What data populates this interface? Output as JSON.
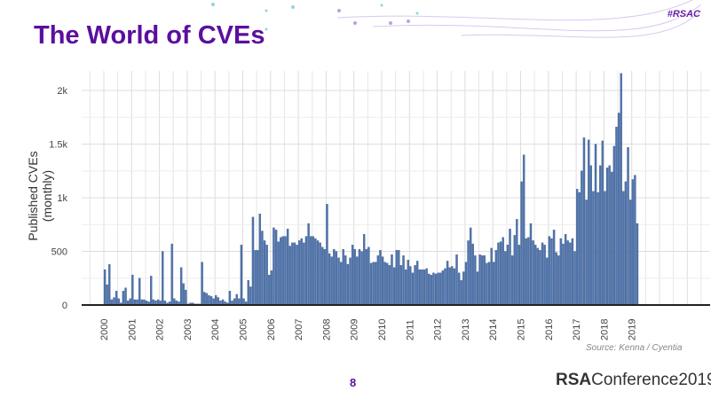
{
  "slide": {
    "title": "The World of CVEs",
    "hashtag": "#RSAC",
    "page_number": "8",
    "brand_bold": "RSA",
    "brand_rest": "Conference2019",
    "source": "Source: Kenna / Cyentia"
  },
  "chart_data": {
    "type": "bar",
    "title": "",
    "xlabel": "",
    "ylabel_line1": "Published CVEs",
    "ylabel_line2": "(monthly)",
    "ylim": [
      0,
      2200
    ],
    "yticks": [
      0,
      500,
      1000,
      1500,
      2000
    ],
    "ytick_labels": [
      "0",
      "500",
      "1k",
      "1.5k",
      "2k"
    ],
    "xtick_labels": [
      "2000",
      "2001",
      "2002",
      "2003",
      "2004",
      "2005",
      "2006",
      "2007",
      "2008",
      "2009",
      "2010",
      "2011",
      "2012",
      "2013",
      "2014",
      "2015",
      "2016",
      "2017",
      "2018",
      "2019"
    ],
    "start": "2000-01",
    "bar_color": "#4f74ac",
    "values": [
      330,
      190,
      380,
      50,
      70,
      130,
      60,
      20,
      130,
      160,
      40,
      60,
      280,
      50,
      50,
      250,
      50,
      50,
      40,
      30,
      270,
      50,
      40,
      50,
      40,
      500,
      40,
      20,
      30,
      570,
      60,
      40,
      30,
      350,
      200,
      140,
      10,
      20,
      20,
      10,
      10,
      10,
      400,
      120,
      110,
      90,
      80,
      60,
      90,
      70,
      40,
      50,
      30,
      20,
      130,
      40,
      60,
      100,
      60,
      560,
      60,
      30,
      230,
      170,
      820,
      510,
      510,
      850,
      690,
      600,
      560,
      280,
      320,
      720,
      700,
      590,
      630,
      640,
      640,
      710,
      550,
      580,
      580,
      560,
      600,
      620,
      580,
      640,
      760,
      640,
      640,
      620,
      600,
      580,
      540,
      520,
      940,
      480,
      450,
      520,
      500,
      440,
      400,
      520,
      460,
      380,
      440,
      560,
      520,
      450,
      520,
      500,
      660,
      520,
      540,
      390,
      400,
      400,
      460,
      510,
      450,
      400,
      390,
      370,
      470,
      350,
      510,
      510,
      370,
      460,
      330,
      420,
      360,
      300,
      370,
      410,
      330,
      330,
      330,
      340,
      290,
      280,
      300,
      290,
      300,
      300,
      320,
      340,
      410,
      350,
      360,
      340,
      470,
      300,
      230,
      310,
      400,
      600,
      720,
      570,
      460,
      310,
      470,
      460,
      460,
      390,
      400,
      530,
      400,
      510,
      580,
      590,
      630,
      500,
      560,
      710,
      460,
      650,
      800,
      560,
      1150,
      1400,
      620,
      630,
      760,
      600,
      560,
      530,
      510,
      580,
      560,
      440,
      640,
      620,
      700,
      490,
      460,
      620,
      570,
      660,
      600,
      580,
      620,
      500,
      1080,
      1050,
      1250,
      1560,
      980,
      1540,
      1300,
      1060,
      1500,
      1050,
      1300,
      1530,
      1060,
      1280,
      1300,
      1240,
      1480,
      1660,
      1790,
      2160,
      1060,
      1150,
      1470,
      980,
      1170,
      1210,
      760
    ]
  }
}
